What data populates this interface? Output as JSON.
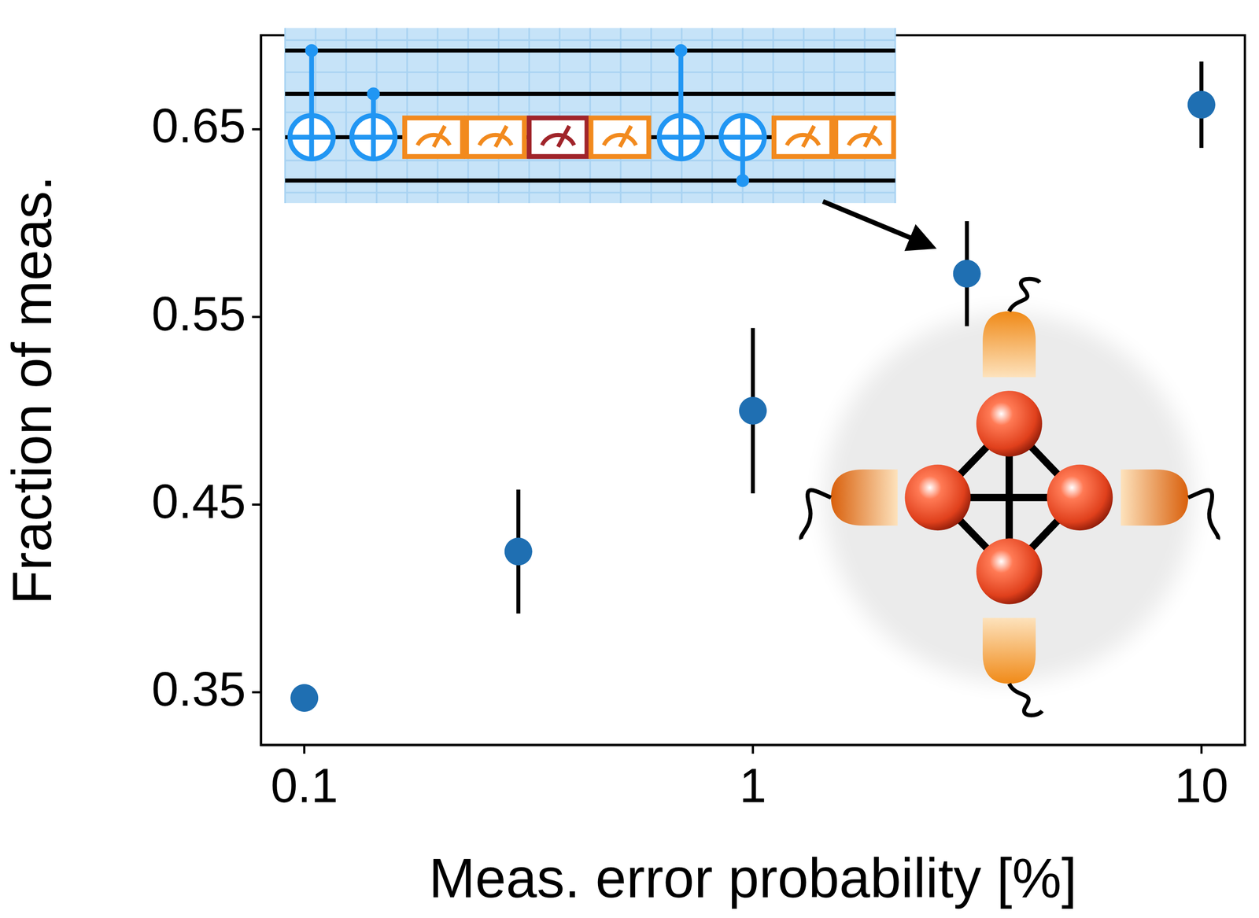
{
  "chart_data": {
    "type": "scatter",
    "x_label": "Meas. error probability [%]",
    "y_label": "Fraction of meas.",
    "x": [
      0.1,
      0.3,
      1,
      3,
      10
    ],
    "values": [
      0.347,
      0.425,
      0.5,
      0.573,
      0.663
    ],
    "errors": [
      0.004,
      0.033,
      0.044,
      0.028,
      0.023
    ],
    "color": "#1f6fb2",
    "marker": "circle",
    "xlim": [
      0.08,
      12.5
    ],
    "ylim": [
      0.322,
      0.7
    ],
    "xticks": [
      0.1,
      1,
      10
    ],
    "yticks": [
      0.35,
      0.45,
      0.55,
      0.65
    ],
    "log": "x",
    "grid": false
  }
}
